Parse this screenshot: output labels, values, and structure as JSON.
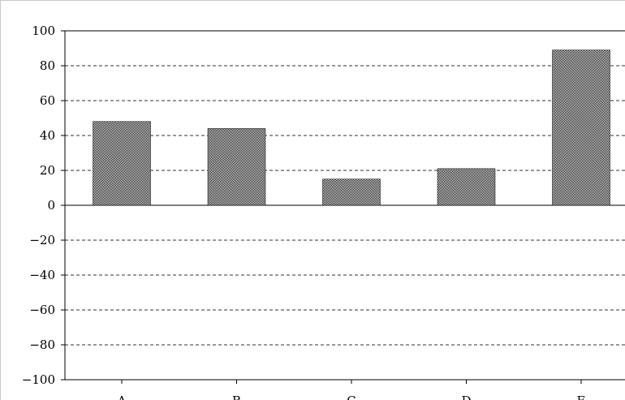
{
  "chart_data": {
    "type": "bar",
    "title": "",
    "xlabel": "",
    "ylabel": "",
    "categories": [
      "A",
      "B",
      "C",
      "D",
      "E"
    ],
    "values": [
      48,
      44,
      15,
      21,
      89
    ],
    "ylim": [
      -100,
      100
    ],
    "yticks": [
      100,
      80,
      60,
      40,
      20,
      0,
      -20,
      -40,
      -60,
      -80,
      -100
    ],
    "ytick_labels": [
      "100",
      "80",
      "60",
      "40",
      "20",
      "0",
      "−20",
      "−40",
      "−60",
      "−80",
      "−100"
    ],
    "grid": "horizontal dashed",
    "bar_fill": "#000000",
    "bar_pattern": "checkerboard"
  }
}
